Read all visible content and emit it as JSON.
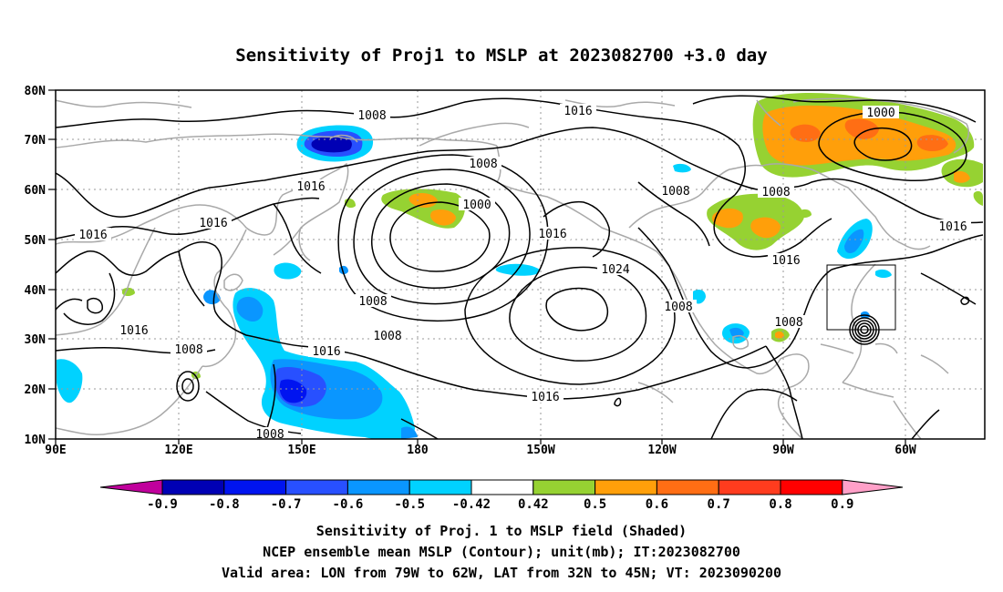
{
  "title": "Sensitivity of Proj1 to MSLP at 2023082700 +3.0 day",
  "map": {
    "lat_labels": [
      "80N",
      "70N",
      "60N",
      "50N",
      "40N",
      "30N",
      "20N",
      "10N"
    ],
    "lon_labels": [
      "90E",
      "120E",
      "150E",
      "180",
      "150W",
      "120W",
      "90W",
      "60W"
    ],
    "gridlines": "dotted",
    "contour_unit": "mb",
    "contour_labels": [
      "1008",
      "1016",
      "1008",
      "1016",
      "1000",
      "1008",
      "1016",
      "1008",
      "1016",
      "1016",
      "1024",
      "1008",
      "1016",
      "1008",
      "1008",
      "1016",
      "1016",
      "1016",
      "1008",
      "1000",
      "1008",
      "1016",
      "1008",
      "1016"
    ],
    "valid_area_box": {
      "lon_from": "79W",
      "lon_to": "62W",
      "lat_from": "32N",
      "lat_to": "45N"
    }
  },
  "colorbar": {
    "tick_labels": [
      "-0.9",
      "-0.8",
      "-0.7",
      "-0.6",
      "-0.5",
      "-0.42",
      "0.42",
      "0.5",
      "0.6",
      "0.7",
      "0.8",
      "0.9"
    ],
    "bins": [
      {
        "from": null,
        "to": -0.9,
        "color": "#c0009c"
      },
      {
        "from": -0.9,
        "to": -0.8,
        "color": "#0000b4"
      },
      {
        "from": -0.8,
        "to": -0.7,
        "color": "#0014f0"
      },
      {
        "from": -0.7,
        "to": -0.6,
        "color": "#2850ff"
      },
      {
        "from": -0.6,
        "to": -0.5,
        "color": "#0a96ff"
      },
      {
        "from": -0.5,
        "to": -0.42,
        "color": "#00d2ff"
      },
      {
        "from": -0.42,
        "to": 0.42,
        "color": "#ffffff"
      },
      {
        "from": 0.42,
        "to": 0.5,
        "color": "#96d232"
      },
      {
        "from": 0.5,
        "to": 0.6,
        "color": "#ff9f0a"
      },
      {
        "from": 0.6,
        "to": 0.7,
        "color": "#ff6e14"
      },
      {
        "from": 0.7,
        "to": 0.8,
        "color": "#ff3c1e"
      },
      {
        "from": 0.8,
        "to": 0.9,
        "color": "#ff0000"
      },
      {
        "from": 0.9,
        "to": null,
        "color": "#ffa0c8"
      }
    ]
  },
  "footer": {
    "line1": "Sensitivity of Proj. 1 to MSLP field (Shaded)",
    "line2": "NCEP ensemble mean MSLP (Contour); unit(mb); IT:2023082700",
    "line3": "Valid area: LON from 79W to 62W, LAT from 32N to 45N; VT: 2023090200"
  }
}
